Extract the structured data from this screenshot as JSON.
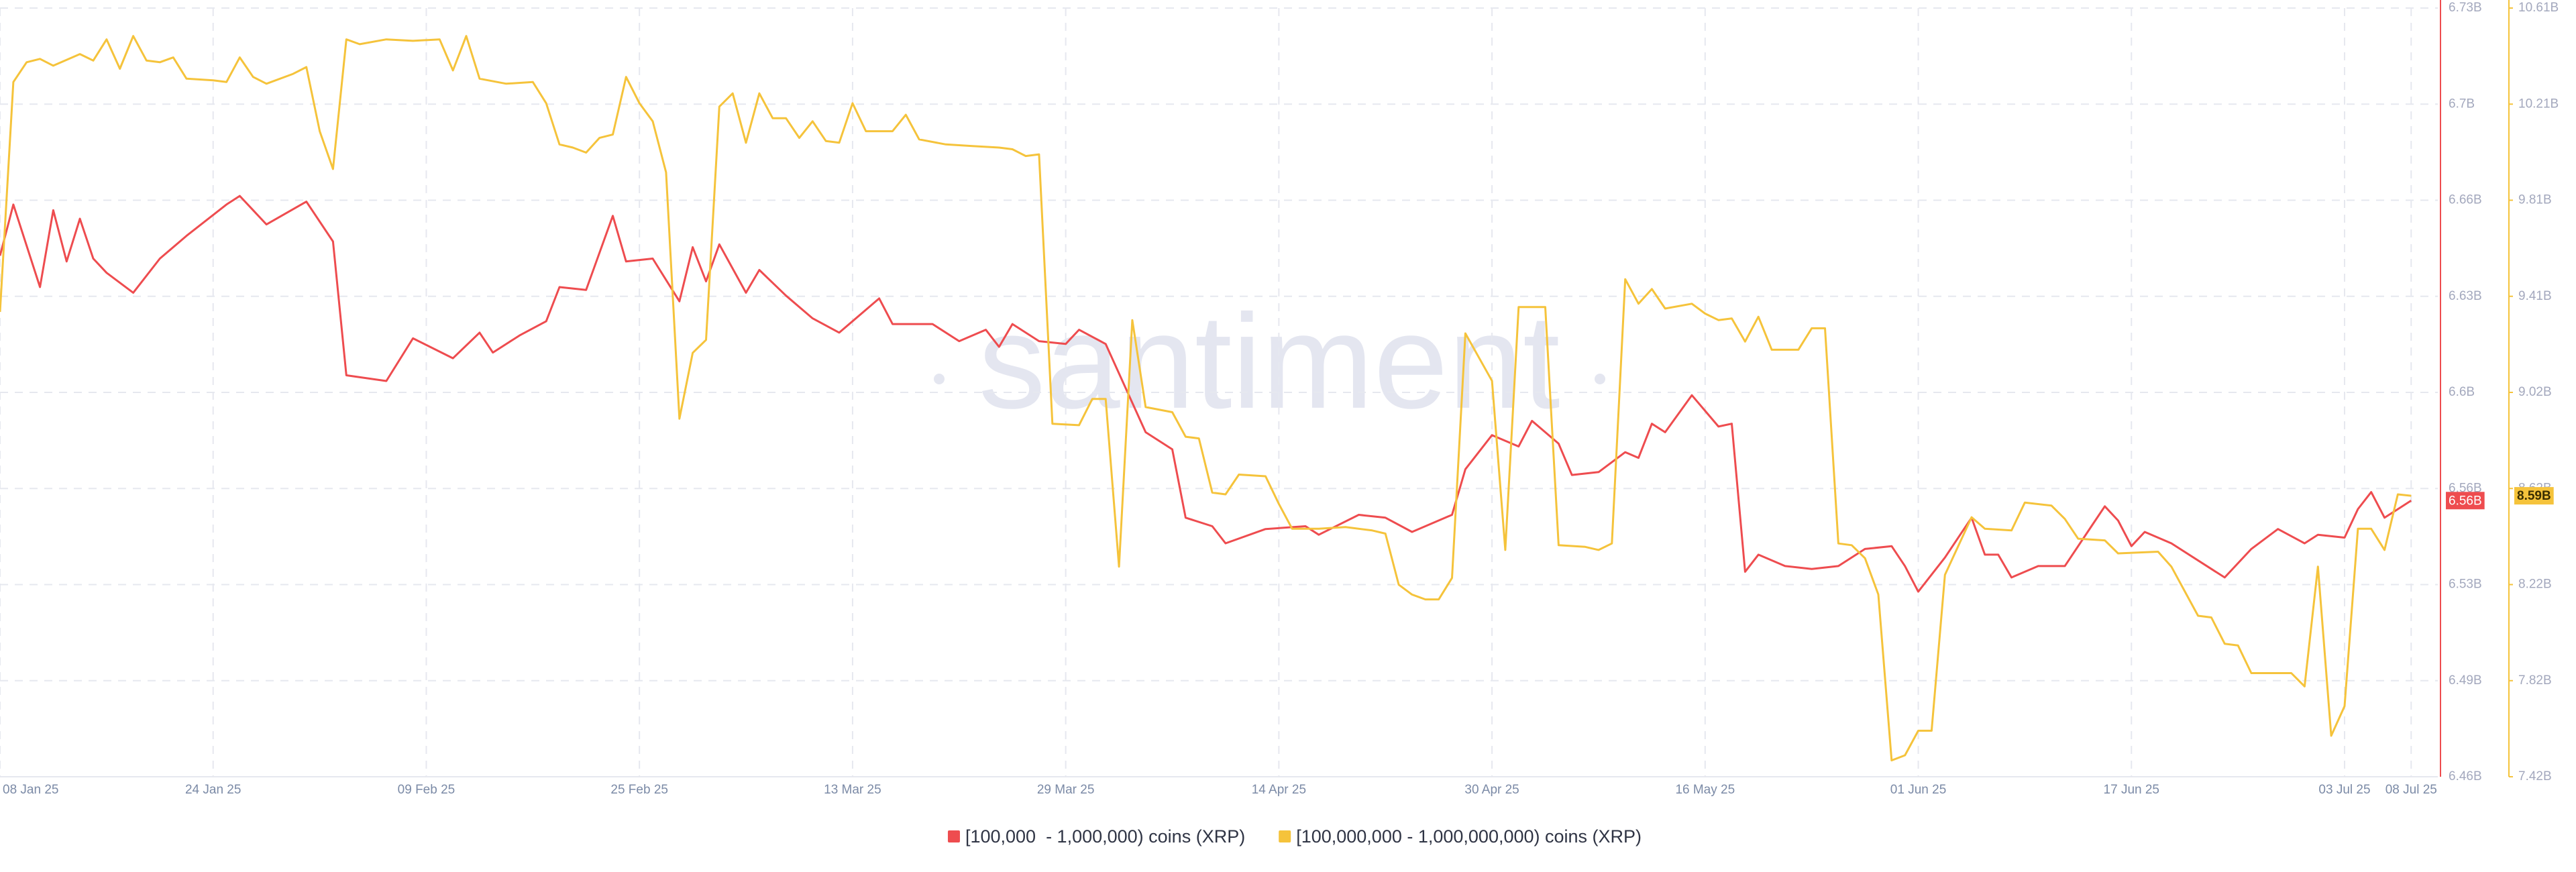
{
  "chart_data": {
    "type": "line",
    "watermark": "santiment",
    "xlim": [
      "2025-01-08",
      "2025-07-10"
    ],
    "xticks": [
      {
        "value": "2025-01-08",
        "label": "08 Jan 25"
      },
      {
        "value": "2025-01-24",
        "label": "24 Jan 25"
      },
      {
        "value": "2025-02-09",
        "label": "09 Feb 25"
      },
      {
        "value": "2025-02-25",
        "label": "25 Feb 25"
      },
      {
        "value": "2025-03-13",
        "label": "13 Mar 25"
      },
      {
        "value": "2025-03-29",
        "label": "29 Mar 25"
      },
      {
        "value": "2025-04-14",
        "label": "14 Apr 25"
      },
      {
        "value": "2025-04-30",
        "label": "30 Apr 25"
      },
      {
        "value": "2025-05-16",
        "label": "16 May 25"
      },
      {
        "value": "2025-06-01",
        "label": "01 Jun 25"
      },
      {
        "value": "2025-06-17",
        "label": "17 Jun 25"
      },
      {
        "value": "2025-07-03",
        "label": "03 Jul 25"
      },
      {
        "value": "2025-07-08",
        "label": "08 Jul 25"
      }
    ],
    "ylim": [
      6.46,
      6.73
    ],
    "yticks": [
      {
        "value": 6.46,
        "label": "6.46B"
      },
      {
        "value": 6.49375,
        "label": "6.49B"
      },
      {
        "value": 6.5275,
        "label": "6.53B"
      },
      {
        "value": 6.56125,
        "label": "6.56B"
      },
      {
        "value": 6.595,
        "label": "6.6B"
      },
      {
        "value": 6.62875,
        "label": "6.63B"
      },
      {
        "value": 6.6625,
        "label": "6.66B"
      },
      {
        "value": 6.69625,
        "label": "6.7B"
      },
      {
        "value": 6.73,
        "label": "6.73B"
      }
    ],
    "y2lim": [
      7.42,
      10.61
    ],
    "y2ticks": [
      {
        "value": 7.42,
        "label": "7.42B"
      },
      {
        "value": 7.81875,
        "label": "7.82B"
      },
      {
        "value": 8.2175,
        "label": "8.22B"
      },
      {
        "value": 8.61625,
        "label": "8.62B"
      },
      {
        "value": 9.015,
        "label": "9.02B"
      },
      {
        "value": 9.41375,
        "label": "9.41B"
      },
      {
        "value": 9.8125,
        "label": "9.81B"
      },
      {
        "value": 10.21125,
        "label": "10.21B"
      },
      {
        "value": 10.61,
        "label": "10.61B"
      }
    ],
    "grid": true,
    "series": [
      {
        "name": "[100,000  - 1,000,000) coins (XRP)",
        "color": "#ee4c4f",
        "axis": "y",
        "last_label": "6.56B",
        "x": [
          "2025-01-08",
          "2025-01-09",
          "2025-01-11",
          "2025-01-12",
          "2025-01-13",
          "2025-01-14",
          "2025-01-15",
          "2025-01-16",
          "2025-01-18",
          "2025-01-20",
          "2025-01-22",
          "2025-01-25",
          "2025-01-26",
          "2025-01-28",
          "2025-01-31",
          "2025-02-02",
          "2025-02-03",
          "2025-02-06",
          "2025-02-08",
          "2025-02-11",
          "2025-02-13",
          "2025-02-14",
          "2025-02-16",
          "2025-02-18",
          "2025-02-19",
          "2025-02-21",
          "2025-02-23",
          "2025-02-24",
          "2025-02-26",
          "2025-02-28",
          "2025-03-01",
          "2025-03-02",
          "2025-03-03",
          "2025-03-05",
          "2025-03-06",
          "2025-03-08",
          "2025-03-10",
          "2025-03-12",
          "2025-03-15",
          "2025-03-16",
          "2025-03-19",
          "2025-03-21",
          "2025-03-23",
          "2025-03-24",
          "2025-03-25",
          "2025-03-27",
          "2025-03-29",
          "2025-03-30",
          "2025-04-01",
          "2025-04-04",
          "2025-04-06",
          "2025-04-07",
          "2025-04-09",
          "2025-04-10",
          "2025-04-13",
          "2025-04-16",
          "2025-04-17",
          "2025-04-20",
          "2025-04-22",
          "2025-04-24",
          "2025-04-27",
          "2025-04-28",
          "2025-04-30",
          "2025-05-02",
          "2025-05-03",
          "2025-05-05",
          "2025-05-06",
          "2025-05-08",
          "2025-05-10",
          "2025-05-11",
          "2025-05-12",
          "2025-05-13",
          "2025-05-15",
          "2025-05-17",
          "2025-05-18",
          "2025-05-19",
          "2025-05-20",
          "2025-05-22",
          "2025-05-24",
          "2025-05-26",
          "2025-05-28",
          "2025-05-30",
          "2025-05-31",
          "2025-06-01",
          "2025-06-03",
          "2025-06-05",
          "2025-06-06",
          "2025-06-07",
          "2025-06-08",
          "2025-06-10",
          "2025-06-12",
          "2025-06-14",
          "2025-06-15",
          "2025-06-16",
          "2025-06-17",
          "2025-06-18",
          "2025-06-20",
          "2025-06-23",
          "2025-06-24",
          "2025-06-26",
          "2025-06-28",
          "2025-06-30",
          "2025-07-01",
          "2025-07-03",
          "2025-07-04",
          "2025-07-05",
          "2025-07-06",
          "2025-07-08"
        ],
        "values": [
          6.643,
          6.661,
          6.632,
          6.659,
          6.641,
          6.656,
          6.642,
          6.637,
          6.63,
          6.642,
          6.65,
          6.661,
          6.664,
          6.654,
          6.662,
          6.648,
          6.601,
          6.599,
          6.614,
          6.607,
          6.616,
          6.609,
          6.615,
          6.62,
          6.632,
          6.631,
          6.657,
          6.641,
          6.642,
          6.627,
          6.646,
          6.634,
          6.647,
          6.63,
          6.638,
          6.629,
          6.621,
          6.616,
          6.628,
          6.619,
          6.619,
          6.613,
          6.617,
          6.611,
          6.619,
          6.613,
          6.612,
          6.617,
          6.612,
          6.581,
          6.575,
          6.551,
          6.548,
          6.542,
          6.547,
          6.548,
          6.545,
          6.552,
          6.551,
          6.546,
          6.552,
          6.568,
          6.58,
          6.576,
          6.585,
          6.577,
          6.566,
          6.567,
          6.574,
          6.572,
          6.584,
          6.581,
          6.594,
          6.583,
          6.584,
          6.532,
          6.538,
          6.534,
          6.533,
          6.534,
          6.54,
          6.541,
          6.534,
          6.525,
          6.537,
          6.551,
          6.538,
          6.538,
          6.53,
          6.534,
          6.534,
          6.548,
          6.555,
          6.55,
          6.541,
          6.546,
          6.542,
          6.533,
          6.53,
          6.54,
          6.547,
          6.542,
          6.545,
          6.544,
          6.554,
          6.56,
          6.551,
          6.557
        ]
      },
      {
        "name": "[100,000,000 - 1,000,000,000) coins (XRP)",
        "color": "#f5c33b",
        "axis": "y2",
        "last_label": "8.59B",
        "x": [
          "2025-01-08",
          "2025-01-09",
          "2025-01-10",
          "2025-01-11",
          "2025-01-12",
          "2025-01-14",
          "2025-01-15",
          "2025-01-16",
          "2025-01-17",
          "2025-01-18",
          "2025-01-19",
          "2025-01-20",
          "2025-01-21",
          "2025-01-22",
          "2025-01-24",
          "2025-01-25",
          "2025-01-26",
          "2025-01-27",
          "2025-01-28",
          "2025-01-30",
          "2025-01-31",
          "2025-02-01",
          "2025-02-02",
          "2025-02-03",
          "2025-02-04",
          "2025-02-06",
          "2025-02-08",
          "2025-02-10",
          "2025-02-11",
          "2025-02-12",
          "2025-02-13",
          "2025-02-15",
          "2025-02-17",
          "2025-02-18",
          "2025-02-19",
          "2025-02-20",
          "2025-02-21",
          "2025-02-22",
          "2025-02-23",
          "2025-02-24",
          "2025-02-25",
          "2025-02-26",
          "2025-02-27",
          "2025-02-28",
          "2025-03-01",
          "2025-03-02",
          "2025-03-03",
          "2025-03-04",
          "2025-03-05",
          "2025-03-06",
          "2025-03-07",
          "2025-03-08",
          "2025-03-09",
          "2025-03-10",
          "2025-03-11",
          "2025-03-12",
          "2025-03-13",
          "2025-03-14",
          "2025-03-16",
          "2025-03-17",
          "2025-03-18",
          "2025-03-20",
          "2025-03-22",
          "2025-03-24",
          "2025-03-25",
          "2025-03-26",
          "2025-03-27",
          "2025-03-28",
          "2025-03-30",
          "2025-03-31",
          "2025-04-01",
          "2025-04-02",
          "2025-04-03",
          "2025-04-04",
          "2025-04-06",
          "2025-04-07",
          "2025-04-08",
          "2025-04-09",
          "2025-04-10",
          "2025-04-11",
          "2025-04-13",
          "2025-04-14",
          "2025-04-15",
          "2025-04-17",
          "2025-04-19",
          "2025-04-21",
          "2025-04-22",
          "2025-04-23",
          "2025-04-24",
          "2025-04-25",
          "2025-04-26",
          "2025-04-27",
          "2025-04-28",
          "2025-04-30",
          "2025-05-01",
          "2025-05-02",
          "2025-05-04",
          "2025-05-05",
          "2025-05-07",
          "2025-05-08",
          "2025-05-09",
          "2025-05-10",
          "2025-05-11",
          "2025-05-12",
          "2025-05-13",
          "2025-05-15",
          "2025-05-16",
          "2025-05-17",
          "2025-05-18",
          "2025-05-19",
          "2025-05-20",
          "2025-05-21",
          "2025-05-23",
          "2025-05-24",
          "2025-05-25",
          "2025-05-26",
          "2025-05-27",
          "2025-05-28",
          "2025-05-29",
          "2025-05-30",
          "2025-05-31",
          "2025-06-01",
          "2025-06-02",
          "2025-06-03",
          "2025-06-05",
          "2025-06-06",
          "2025-06-08",
          "2025-06-09",
          "2025-06-11",
          "2025-06-12",
          "2025-06-13",
          "2025-06-15",
          "2025-06-16",
          "2025-06-19",
          "2025-06-20",
          "2025-06-21",
          "2025-06-22",
          "2025-06-23",
          "2025-06-24",
          "2025-06-25",
          "2025-06-26",
          "2025-06-29",
          "2025-06-30",
          "2025-07-01",
          "2025-07-02",
          "2025-07-03",
          "2025-07-04",
          "2025-07-05",
          "2025-07-06",
          "2025-07-07",
          "2025-07-08"
        ],
        "values": [
          9.349,
          10.303,
          10.385,
          10.399,
          10.371,
          10.419,
          10.392,
          10.48,
          10.358,
          10.494,
          10.392,
          10.385,
          10.405,
          10.317,
          10.31,
          10.303,
          10.405,
          10.324,
          10.296,
          10.337,
          10.365,
          10.099,
          9.942,
          10.48,
          10.46,
          10.48,
          10.474,
          10.48,
          10.351,
          10.494,
          10.317,
          10.296,
          10.303,
          10.215,
          10.044,
          10.031,
          10.01,
          10.071,
          10.085,
          10.324,
          10.215,
          10.14,
          9.928,
          8.906,
          9.179,
          9.233,
          10.201,
          10.256,
          10.051,
          10.256,
          10.153,
          10.153,
          10.071,
          10.14,
          10.058,
          10.051,
          10.215,
          10.099,
          10.099,
          10.167,
          10.065,
          10.044,
          10.037,
          10.031,
          10.024,
          9.996,
          10.003,
          8.885,
          8.879,
          8.988,
          8.988,
          8.292,
          9.315,
          8.954,
          8.933,
          8.831,
          8.824,
          8.599,
          8.592,
          8.674,
          8.667,
          8.552,
          8.449,
          8.449,
          8.456,
          8.442,
          8.429,
          8.217,
          8.176,
          8.156,
          8.156,
          8.245,
          9.26,
          9.063,
          8.361,
          9.369,
          9.369,
          8.381,
          8.374,
          8.361,
          8.388,
          9.485,
          9.383,
          9.444,
          9.363,
          9.383,
          9.342,
          9.315,
          9.322,
          9.226,
          9.329,
          9.192,
          9.192,
          9.281,
          9.281,
          8.388,
          8.381,
          8.327,
          8.176,
          7.488,
          7.509,
          7.611,
          7.611,
          8.258,
          8.497,
          8.449,
          8.442,
          8.558,
          8.545,
          8.49,
          8.408,
          8.401,
          8.347,
          8.354,
          8.292,
          8.19,
          8.088,
          8.081,
          7.972,
          7.965,
          7.85,
          7.85,
          7.795,
          8.292,
          7.59,
          7.713,
          8.449,
          8.449,
          8.361,
          8.592,
          8.586
        ]
      }
    ]
  }
}
